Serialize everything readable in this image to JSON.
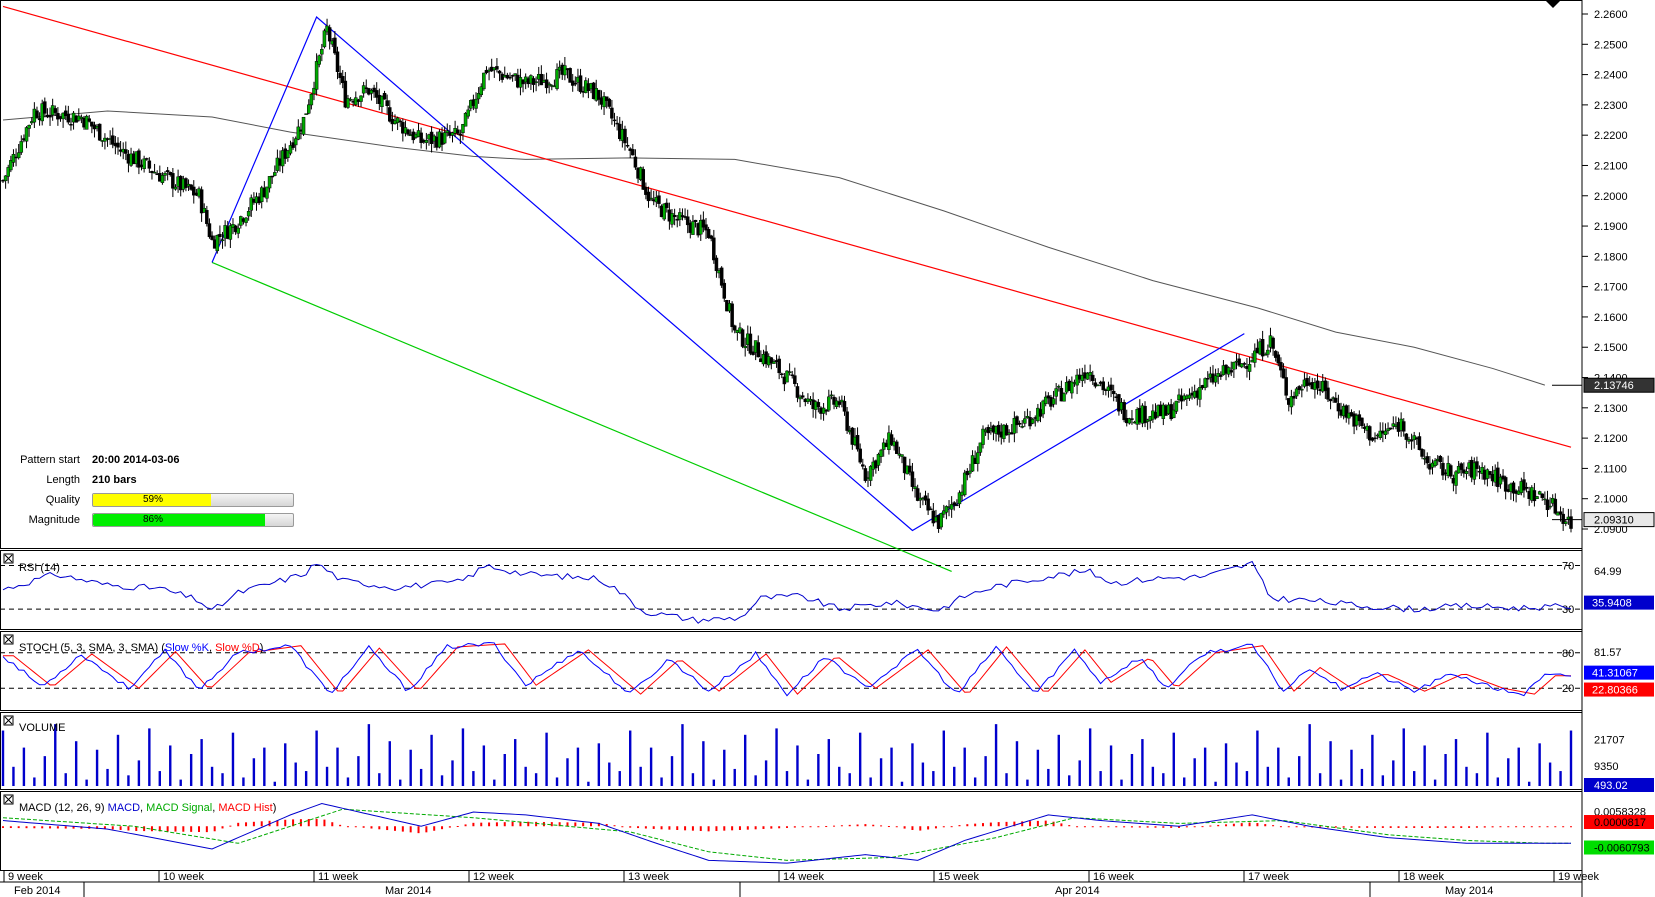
{
  "pattern_info": {
    "start_label": "Pattern start",
    "start_value": "20:00 2014-03-06",
    "length_label": "Length",
    "length_value": "210 bars",
    "quality_label": "Quality",
    "quality_value": "59%",
    "quality_fraction": 0.59,
    "magnitude_label": "Magnitude",
    "magnitude_value": "86%",
    "magnitude_fraction": 0.86,
    "quality_color": "#ffff00",
    "magnitude_color": "#00ee00"
  },
  "chart_data": [
    {
      "type": "candlestick",
      "ylim": [
        2.09,
        2.26
      ],
      "yticks": [
        "2.2600",
        "2.2500",
        "2.2400",
        "2.2300",
        "2.2200",
        "2.2100",
        "2.2000",
        "2.1900",
        "2.1800",
        "2.1700",
        "2.1600",
        "2.1500",
        "2.1400",
        "2.1300",
        "2.1200",
        "2.1100",
        "2.1000",
        "2.0900"
      ],
      "price_labels": [
        {
          "value": "2.13746",
          "numeric": 2.13746,
          "style": "dark"
        },
        {
          "value": "2.09310",
          "numeric": 2.0931,
          "style": "light"
        }
      ],
      "close_path": [
        [
          0,
          2.205
        ],
        [
          12,
          2.228
        ],
        [
          30,
          2.226
        ],
        [
          45,
          2.215
        ],
        [
          60,
          2.207
        ],
        [
          75,
          2.2
        ],
        [
          80,
          2.185
        ],
        [
          88,
          2.19
        ],
        [
          100,
          2.202
        ],
        [
          115,
          2.225
        ],
        [
          124,
          2.255
        ],
        [
          131,
          2.232
        ],
        [
          140,
          2.235
        ],
        [
          150,
          2.225
        ],
        [
          160,
          2.218
        ],
        [
          175,
          2.22
        ],
        [
          185,
          2.242
        ],
        [
          200,
          2.237
        ],
        [
          215,
          2.24
        ],
        [
          228,
          2.233
        ],
        [
          240,
          2.215
        ],
        [
          248,
          2.198
        ],
        [
          258,
          2.192
        ],
        [
          270,
          2.188
        ],
        [
          280,
          2.155
        ],
        [
          290,
          2.148
        ],
        [
          300,
          2.14
        ],
        [
          310,
          2.13
        ],
        [
          320,
          2.132
        ],
        [
          330,
          2.108
        ],
        [
          340,
          2.12
        ],
        [
          350,
          2.1
        ],
        [
          358,
          2.092
        ],
        [
          366,
          2.102
        ],
        [
          375,
          2.12
        ],
        [
          390,
          2.125
        ],
        [
          405,
          2.135
        ],
        [
          415,
          2.143
        ],
        [
          430,
          2.128
        ],
        [
          445,
          2.128
        ],
        [
          460,
          2.138
        ],
        [
          475,
          2.145
        ],
        [
          485,
          2.152
        ],
        [
          492,
          2.133
        ],
        [
          500,
          2.14
        ],
        [
          512,
          2.13
        ],
        [
          525,
          2.12
        ],
        [
          535,
          2.125
        ],
        [
          545,
          2.112
        ],
        [
          555,
          2.108
        ],
        [
          565,
          2.11
        ],
        [
          575,
          2.105
        ],
        [
          590,
          2.1
        ],
        [
          600,
          2.092
        ]
      ],
      "moving_average": [
        [
          0,
          2.225
        ],
        [
          40,
          2.228
        ],
        [
          80,
          2.226
        ],
        [
          110,
          2.221
        ],
        [
          150,
          2.216
        ],
        [
          180,
          2.213
        ],
        [
          200,
          2.212
        ],
        [
          240,
          2.2125
        ],
        [
          280,
          2.212
        ],
        [
          320,
          2.206
        ],
        [
          360,
          2.195
        ],
        [
          400,
          2.183
        ],
        [
          440,
          2.172
        ],
        [
          480,
          2.163
        ],
        [
          510,
          2.155
        ],
        [
          540,
          2.15
        ],
        [
          570,
          2.143
        ],
        [
          590,
          2.1375
        ]
      ],
      "trendlines": [
        {
          "color": "#ff0000",
          "points": [
            [
              0,
              2.2625
            ],
            [
              600,
              2.117
            ]
          ]
        },
        {
          "color": "#00cc00",
          "points": [
            [
              80,
              2.178
            ],
            [
              363,
              2.076
            ]
          ]
        },
        {
          "color": "#0000ff",
          "points": [
            [
              80,
              2.178
            ],
            [
              120,
              2.259
            ],
            [
              348,
              2.0895
            ],
            [
              475,
              2.1545
            ]
          ]
        }
      ]
    },
    {
      "type": "line",
      "title": "RSI (14)",
      "ylim": [
        20,
        75
      ],
      "levels": [
        "70",
        "30"
      ],
      "tick_labels": [
        "64.99"
      ],
      "current": "35.9408",
      "current_numeric": 35.94,
      "path": [
        [
          0,
          48
        ],
        [
          20,
          62
        ],
        [
          40,
          52
        ],
        [
          60,
          49
        ],
        [
          75,
          38
        ],
        [
          80,
          28
        ],
        [
          90,
          45
        ],
        [
          115,
          62
        ],
        [
          120,
          72
        ],
        [
          130,
          56
        ],
        [
          150,
          50
        ],
        [
          175,
          55
        ],
        [
          185,
          70
        ],
        [
          200,
          62
        ],
        [
          228,
          58
        ],
        [
          235,
          48
        ],
        [
          245,
          28
        ],
        [
          265,
          20
        ],
        [
          282,
          22
        ],
        [
          290,
          40
        ],
        [
          305,
          42
        ],
        [
          320,
          30
        ],
        [
          340,
          36
        ],
        [
          358,
          29
        ],
        [
          368,
          42
        ],
        [
          380,
          51
        ],
        [
          400,
          60
        ],
        [
          415,
          65
        ],
        [
          425,
          54
        ],
        [
          440,
          58
        ],
        [
          460,
          60
        ],
        [
          478,
          72
        ],
        [
          485,
          40
        ],
        [
          500,
          38
        ],
        [
          520,
          33
        ],
        [
          540,
          30
        ],
        [
          560,
          33
        ],
        [
          580,
          31
        ],
        [
          590,
          32
        ]
      ]
    },
    {
      "type": "line",
      "title": "STOCH (5, 3, SMA, 3, SMA)",
      "legend": [
        "Slow %K",
        "Slow %D"
      ],
      "ylim": [
        0,
        100
      ],
      "levels": [
        "80",
        "20"
      ],
      "tick_labels": [
        "81.57"
      ],
      "current_k": "41.31067",
      "current_d": "22.80366",
      "current_k_numeric": 41.31,
      "current_d_numeric": 22.8,
      "k_path": [
        [
          0,
          75
        ],
        [
          15,
          22
        ],
        [
          30,
          78
        ],
        [
          48,
          20
        ],
        [
          62,
          82
        ],
        [
          75,
          18
        ],
        [
          90,
          80
        ],
        [
          110,
          92
        ],
        [
          125,
          10
        ],
        [
          140,
          88
        ],
        [
          155,
          15
        ],
        [
          170,
          90
        ],
        [
          188,
          95
        ],
        [
          200,
          25
        ],
        [
          220,
          85
        ],
        [
          240,
          10
        ],
        [
          255,
          70
        ],
        [
          270,
          15
        ],
        [
          288,
          78
        ],
        [
          300,
          10
        ],
        [
          315,
          75
        ],
        [
          330,
          20
        ],
        [
          350,
          85
        ],
        [
          365,
          8
        ],
        [
          380,
          90
        ],
        [
          395,
          10
        ],
        [
          410,
          85
        ],
        [
          420,
          30
        ],
        [
          435,
          72
        ],
        [
          445,
          20
        ],
        [
          460,
          80
        ],
        [
          478,
          92
        ],
        [
          490,
          15
        ],
        [
          500,
          55
        ],
        [
          512,
          20
        ],
        [
          525,
          45
        ],
        [
          540,
          15
        ],
        [
          555,
          45
        ],
        [
          570,
          20
        ],
        [
          582,
          10
        ],
        [
          590,
          41
        ]
      ]
    },
    {
      "type": "bar",
      "title": "VOLUME",
      "tick_labels": [
        "21707",
        "9350"
      ],
      "current": "493.02",
      "ylim": [
        0,
        30000
      ],
      "sample_values": [
        26000,
        9000,
        18000,
        4000,
        14000,
        29000,
        6000,
        21000,
        3000,
        17000,
        8000,
        24000,
        5000,
        12000,
        27000,
        7000,
        19000,
        3000,
        15000,
        22000,
        9000,
        6000,
        25000,
        4000,
        13000,
        18000,
        2000,
        20000,
        11000,
        7000
      ]
    },
    {
      "type": "line",
      "title": "MACD (12, 26, 9)",
      "legend": [
        "MACD",
        "MACD Signal",
        "MACD Hist"
      ],
      "tick_labels": [
        "0.0058328"
      ],
      "current_signal": "0.0000817",
      "current_macd": "-0.0060793",
      "current_signal_numeric": 8.17e-05,
      "current_macd_numeric": -0.0060793,
      "ylim": [
        -0.014,
        0.011
      ],
      "macd_path": [
        [
          0,
          0.002
        ],
        [
          40,
          -0.001
        ],
        [
          80,
          -0.008
        ],
        [
          110,
          0.004
        ],
        [
          122,
          0.008
        ],
        [
          160,
          0.0
        ],
        [
          180,
          0.005
        ],
        [
          200,
          0.004
        ],
        [
          228,
          0.001
        ],
        [
          250,
          -0.006
        ],
        [
          270,
          -0.012
        ],
        [
          300,
          -0.013
        ],
        [
          330,
          -0.01
        ],
        [
          350,
          -0.012
        ],
        [
          368,
          -0.005
        ],
        [
          400,
          0.004
        ],
        [
          420,
          0.002
        ],
        [
          450,
          0.0
        ],
        [
          478,
          0.004
        ],
        [
          500,
          0.0
        ],
        [
          530,
          -0.004
        ],
        [
          560,
          -0.006
        ],
        [
          590,
          -0.006
        ]
      ],
      "signal_path": [
        [
          0,
          0.003
        ],
        [
          50,
          0.0
        ],
        [
          90,
          -0.006
        ],
        [
          130,
          0.006
        ],
        [
          180,
          0.003
        ],
        [
          240,
          -0.002
        ],
        [
          270,
          -0.009
        ],
        [
          300,
          -0.012
        ],
        [
          340,
          -0.011
        ],
        [
          380,
          -0.004
        ],
        [
          410,
          0.003
        ],
        [
          450,
          0.001
        ],
        [
          490,
          0.002
        ],
        [
          530,
          -0.003
        ],
        [
          560,
          -0.005
        ],
        [
          590,
          -0.006
        ]
      ]
    }
  ],
  "x_axis": {
    "week_labels": [
      "9 week",
      "10 week",
      "11 week",
      "12 week",
      "13 week",
      "14 week",
      "15 week",
      "16 week",
      "17 week",
      "18 week",
      "19 week"
    ],
    "month_labels": [
      "Feb 2014",
      "Mar 2014",
      "Apr 2014",
      "May 2014"
    ]
  },
  "colors": {
    "bull": "#00aa00",
    "bear": "#000000",
    "rsi": "#0000cc",
    "stoch_k": "#0000ff",
    "stoch_d": "#ff0000",
    "volume": "#0000cc",
    "macd": "#0000cc",
    "macd_signal": "#00aa00",
    "macd_hist": "#ff0000",
    "ma": "#555555",
    "current_box": "#0000cc"
  }
}
